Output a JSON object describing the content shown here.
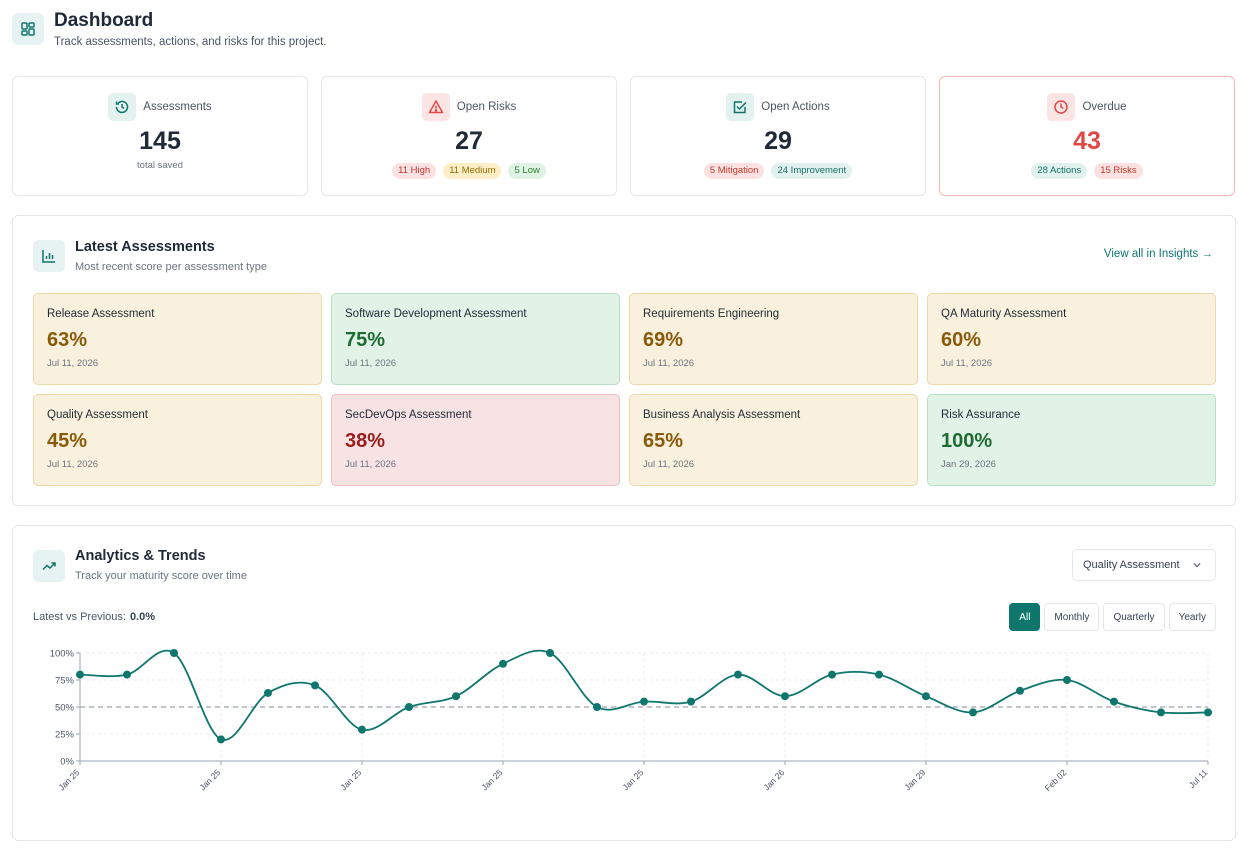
{
  "header": {
    "title": "Dashboard",
    "subtitle": "Track assessments, actions, and risks for this project."
  },
  "kpis": {
    "assessments": {
      "label": "Assessments",
      "value": "145",
      "caption": "total saved"
    },
    "open_risks": {
      "label": "Open Risks",
      "value": "27",
      "chips": [
        "11 High",
        "11 Medium",
        "5 Low"
      ]
    },
    "open_actions": {
      "label": "Open Actions",
      "value": "29",
      "chips": [
        "5 Mitigation",
        "24 Improvement"
      ]
    },
    "overdue": {
      "label": "Overdue",
      "value": "43",
      "chips": [
        "28 Actions",
        "15 Risks"
      ]
    }
  },
  "latest": {
    "title": "Latest Assessments",
    "subtitle": "Most recent score per assessment type",
    "view_all": "View all in Insights →",
    "cards": [
      {
        "name": "Release Assessment",
        "score": "63%",
        "date": "Jul 11, 2026",
        "tone": "yellow"
      },
      {
        "name": "Software Development Assessment",
        "score": "75%",
        "date": "Jul 11, 2026",
        "tone": "green"
      },
      {
        "name": "Requirements Engineering",
        "score": "69%",
        "date": "Jul 11, 2026",
        "tone": "yellow"
      },
      {
        "name": "QA Maturity Assessment",
        "score": "60%",
        "date": "Jul 11, 2026",
        "tone": "yellow"
      },
      {
        "name": "Quality Assessment",
        "score": "45%",
        "date": "Jul 11, 2026",
        "tone": "yellow"
      },
      {
        "name": "SecDevOps Assessment",
        "score": "38%",
        "date": "Jul 11, 2026",
        "tone": "red"
      },
      {
        "name": "Business Analysis Assessment",
        "score": "65%",
        "date": "Jul 11, 2026",
        "tone": "yellow"
      },
      {
        "name": "Risk Assurance",
        "score": "100%",
        "date": "Jan 29, 2026",
        "tone": "green"
      }
    ]
  },
  "analytics": {
    "title": "Analytics & Trends",
    "subtitle": "Track your maturity score over time",
    "select_value": "Quality Assessment",
    "compare_label": "Latest vs Previous:",
    "compare_value": "0.0%",
    "ranges": [
      "All",
      "Monthly",
      "Quarterly",
      "Yearly"
    ],
    "active_range": "All"
  },
  "colors": {
    "accent": "#0f766e",
    "danger": "#e04848"
  },
  "chart_data": {
    "type": "line",
    "x_tick_labels": [
      "Jan 25",
      "Jan 25",
      "Jan 25",
      "Jan 25",
      "Jan 25",
      "Jan 26",
      "Jan 29",
      "Feb 02",
      "Jul 11"
    ],
    "y_tick_labels": [
      "0%",
      "25%",
      "50%",
      "75%",
      "100%"
    ],
    "ylim": [
      0,
      100
    ],
    "reference_line": 50,
    "grid": true,
    "series": [
      {
        "values": [
          80,
          80,
          100,
          20,
          63,
          70,
          29,
          50,
          60,
          90,
          100,
          50,
          55,
          55,
          80,
          60,
          80,
          80,
          60,
          45,
          65,
          75,
          55,
          45,
          45
        ]
      }
    ]
  }
}
